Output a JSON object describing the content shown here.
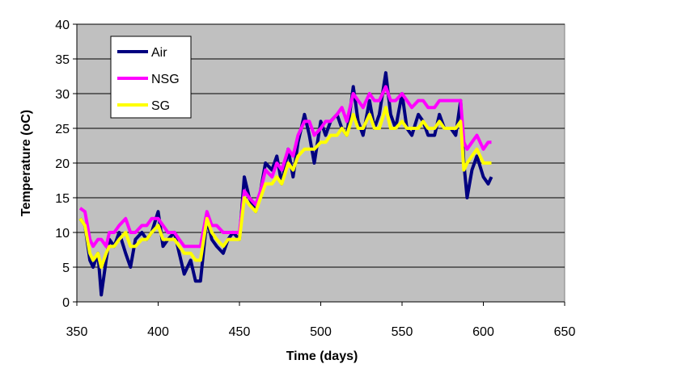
{
  "chart_data": {
    "type": "line",
    "title": "",
    "xlabel": "Time (days)",
    "ylabel": "Temperature (oC)",
    "xlim": [
      350,
      650
    ],
    "ylim": [
      0,
      40
    ],
    "xticks": [
      350,
      400,
      450,
      500,
      550,
      600,
      650
    ],
    "yticks": [
      0,
      5,
      10,
      15,
      20,
      25,
      30,
      35,
      40
    ],
    "grid": "horizontal",
    "legend_position": "top-left",
    "x": [
      352,
      355,
      358,
      360,
      363,
      365,
      368,
      370,
      373,
      376,
      380,
      383,
      386,
      390,
      393,
      396,
      400,
      403,
      406,
      410,
      413,
      416,
      420,
      423,
      426,
      430,
      433,
      436,
      440,
      443,
      446,
      450,
      453,
      456,
      460,
      463,
      466,
      470,
      473,
      476,
      480,
      483,
      486,
      490,
      493,
      496,
      500,
      503,
      506,
      510,
      513,
      516,
      520,
      523,
      526,
      530,
      533,
      536,
      540,
      543,
      546,
      550,
      553,
      556,
      560,
      563,
      566,
      570,
      573,
      576,
      580,
      583,
      586,
      588,
      590,
      593,
      596,
      600,
      603,
      605
    ],
    "series": [
      {
        "name": "Air",
        "color": "#000080",
        "values": [
          12,
          11,
          6,
          5,
          7,
          1,
          6,
          9,
          8,
          10,
          7,
          5,
          9,
          10,
          9,
          10,
          13,
          8,
          9,
          10,
          7,
          4,
          6,
          3,
          3,
          12,
          9,
          8,
          7,
          9,
          10,
          9,
          18,
          15,
          13,
          16,
          20,
          19,
          21,
          17,
          22,
          18,
          23,
          27,
          24,
          20,
          26,
          24,
          26,
          27,
          25,
          24,
          31,
          26,
          24,
          29,
          25,
          27,
          33,
          27,
          25,
          30,
          25,
          24,
          27,
          26,
          24,
          24,
          27,
          25,
          25,
          24,
          29,
          20,
          15,
          19,
          21,
          18,
          17,
          18
        ]
      },
      {
        "name": "NSG",
        "color": "#ff00ff",
        "values": [
          13.5,
          13,
          9,
          8,
          9,
          9,
          8,
          10,
          10,
          11,
          12,
          10,
          10,
          11,
          11,
          12,
          12,
          11,
          10,
          10,
          9,
          8,
          8,
          8,
          8,
          13,
          11,
          11,
          10,
          10,
          10,
          10,
          16,
          15,
          14,
          16,
          19,
          18,
          20,
          19,
          22,
          21,
          24,
          26,
          26,
          24,
          25,
          26,
          26,
          27,
          28,
          26,
          30,
          29,
          28,
          30,
          29,
          29,
          31,
          29,
          29,
          30,
          29,
          28,
          29,
          29,
          28,
          28,
          29,
          29,
          29,
          29,
          29,
          23,
          22,
          23,
          24,
          22,
          23,
          23
        ]
      },
      {
        "name": "SG",
        "color": "#ffff00",
        "values": [
          12,
          11,
          7,
          6,
          7,
          5,
          7,
          8,
          8,
          9,
          10,
          8,
          8,
          9,
          9,
          10,
          11,
          9,
          9,
          9,
          8,
          7,
          7,
          6,
          6,
          12,
          10,
          9,
          8,
          9,
          9,
          9,
          15,
          14,
          13,
          15,
          17,
          17,
          18,
          17,
          20,
          19,
          21,
          22,
          22,
          22,
          23,
          23,
          24,
          24,
          25,
          24,
          27,
          25,
          25,
          27,
          25,
          25,
          28,
          25,
          25,
          26,
          25,
          25,
          25,
          26,
          25,
          25,
          26,
          25,
          25,
          25,
          26,
          19,
          20,
          21,
          22,
          20,
          20,
          20
        ]
      }
    ]
  }
}
